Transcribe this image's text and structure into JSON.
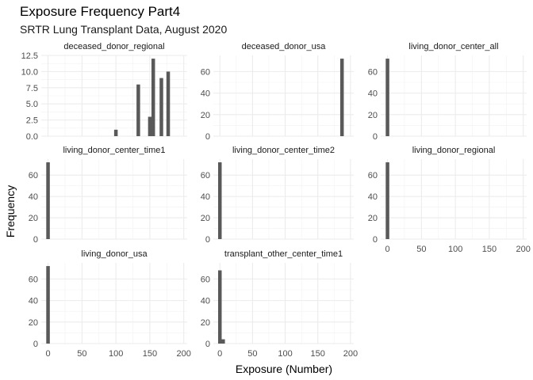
{
  "chart_data": {
    "type": "bar",
    "title": "Exposure Frequency Part4",
    "subtitle": "SRTR Lung Transplant Data, August 2020",
    "xlabel": "Exposure (Number)",
    "ylabel": "Frequency",
    "grid": true,
    "x_ticks": [
      0,
      50,
      100,
      150,
      200
    ],
    "panels": [
      {
        "label": "deceased_donor_regional",
        "xlim": [
          -10,
          205
        ],
        "ylim": [
          0,
          12.5
        ],
        "y_ticks": [
          0.0,
          2.5,
          5.0,
          7.5,
          10.0,
          12.5
        ],
        "y_tick_labels": [
          "0.0",
          "2.5",
          "5.0",
          "7.5",
          "10.0",
          "12.5"
        ],
        "show_x_ticks": false,
        "bars": [
          {
            "x": 100,
            "count": 1
          },
          {
            "x": 133,
            "count": 8
          },
          {
            "x": 150,
            "count": 3
          },
          {
            "x": 155,
            "count": 12
          },
          {
            "x": 167,
            "count": 9
          },
          {
            "x": 177,
            "count": 10
          }
        ]
      },
      {
        "label": "deceased_donor_usa",
        "xlim": [
          -10,
          205
        ],
        "ylim": [
          0,
          75
        ],
        "y_ticks": [
          0,
          20,
          40,
          60
        ],
        "y_tick_labels": [
          "0",
          "20",
          "40",
          "60"
        ],
        "show_x_ticks": false,
        "bars": [
          {
            "x": 187,
            "count": 72
          }
        ]
      },
      {
        "label": "living_donor_center_all",
        "xlim": [
          -10,
          205
        ],
        "ylim": [
          0,
          75
        ],
        "y_ticks": [
          0,
          20,
          40,
          60
        ],
        "y_tick_labels": [
          "0",
          "20",
          "40",
          "60"
        ],
        "show_x_ticks": false,
        "bars": [
          {
            "x": 0,
            "count": 72
          }
        ]
      },
      {
        "label": "living_donor_center_time1",
        "xlim": [
          -10,
          205
        ],
        "ylim": [
          0,
          75
        ],
        "y_ticks": [
          0,
          20,
          40,
          60
        ],
        "y_tick_labels": [
          "0",
          "20",
          "40",
          "60"
        ],
        "show_x_ticks": false,
        "bars": [
          {
            "x": 0,
            "count": 72
          }
        ]
      },
      {
        "label": "living_donor_center_time2",
        "xlim": [
          -10,
          205
        ],
        "ylim": [
          0,
          75
        ],
        "y_ticks": [
          0,
          20,
          40,
          60
        ],
        "y_tick_labels": [
          "0",
          "20",
          "40",
          "60"
        ],
        "show_x_ticks": false,
        "bars": [
          {
            "x": 0,
            "count": 72
          }
        ]
      },
      {
        "label": "living_donor_regional",
        "xlim": [
          -10,
          205
        ],
        "ylim": [
          0,
          75
        ],
        "y_ticks": [
          0,
          20,
          40,
          60
        ],
        "y_tick_labels": [
          "0",
          "20",
          "40",
          "60"
        ],
        "show_x_ticks": true,
        "bars": [
          {
            "x": 0,
            "count": 72
          }
        ]
      },
      {
        "label": "living_donor_usa",
        "xlim": [
          -10,
          205
        ],
        "ylim": [
          0,
          75
        ],
        "y_ticks": [
          0,
          20,
          40,
          60
        ],
        "y_tick_labels": [
          "0",
          "20",
          "40",
          "60"
        ],
        "show_x_ticks": true,
        "bars": [
          {
            "x": 0,
            "count": 72
          }
        ]
      },
      {
        "label": "transplant_other_center_time1",
        "xlim": [
          -10,
          205
        ],
        "ylim": [
          0,
          75
        ],
        "y_ticks": [
          0,
          20,
          40,
          60
        ],
        "y_tick_labels": [
          "0",
          "20",
          "40",
          "60"
        ],
        "show_x_ticks": true,
        "bars": [
          {
            "x": 0,
            "count": 68
          },
          {
            "x": 5,
            "count": 4
          }
        ]
      }
    ]
  }
}
